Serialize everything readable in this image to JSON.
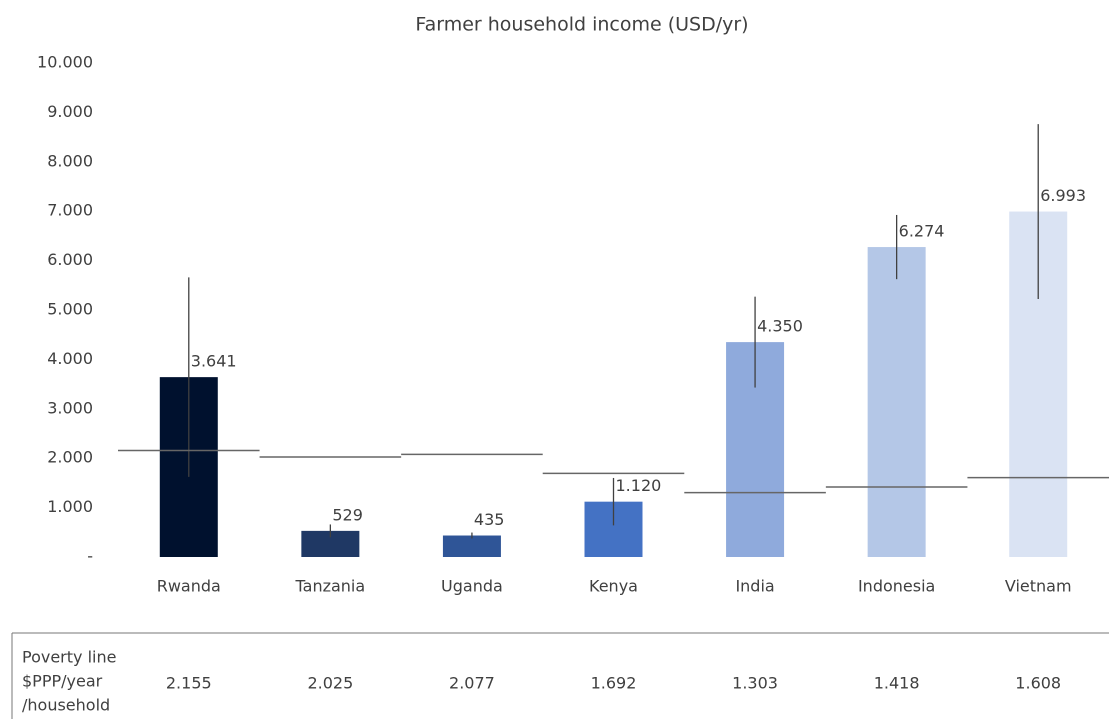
{
  "chart_data": {
    "type": "bar",
    "title": "Farmer household income (USD/yr)",
    "categories": [
      "Rwanda",
      "Tanzania",
      "Uganda",
      "Kenya",
      "India",
      "Indonesia",
      "Vietnam"
    ],
    "values": [
      3641,
      529,
      435,
      1120,
      4350,
      6274,
      6993
    ],
    "value_labels": [
      "3.641",
      "529",
      "435",
      "1.120",
      "4.350",
      "6.274",
      "6.993"
    ],
    "errors": [
      2020,
      130,
      60,
      480,
      920,
      650,
      1770
    ],
    "colors": [
      "#00112e",
      "#1f3864",
      "#2f5597",
      "#4472c4",
      "#8faadc",
      "#b4c7e7",
      "#dae3f3"
    ],
    "ylim": [
      0,
      10000
    ],
    "yticks": [
      {
        "value": 0,
        "label": "-"
      },
      {
        "value": 1000,
        "label": "1.000"
      },
      {
        "value": 2000,
        "label": "2.000"
      },
      {
        "value": 3000,
        "label": "3.000"
      },
      {
        "value": 4000,
        "label": "4.000"
      },
      {
        "value": 5000,
        "label": "5.000"
      },
      {
        "value": 6000,
        "label": "6.000"
      },
      {
        "value": 7000,
        "label": "7.000"
      },
      {
        "value": 8000,
        "label": "8.000"
      },
      {
        "value": 9000,
        "label": "9.000"
      },
      {
        "value": 10000,
        "label": "10.000"
      }
    ],
    "poverty_line": {
      "label": [
        "Poverty line",
        "$PPP/year",
        "/household"
      ],
      "values": [
        2155,
        2025,
        2077,
        1692,
        1303,
        1418,
        1608
      ],
      "value_labels": [
        "2.155",
        "2.025",
        "2.077",
        "1.692",
        "1.303",
        "1.418",
        "1.608"
      ],
      "color": "#666666"
    }
  }
}
